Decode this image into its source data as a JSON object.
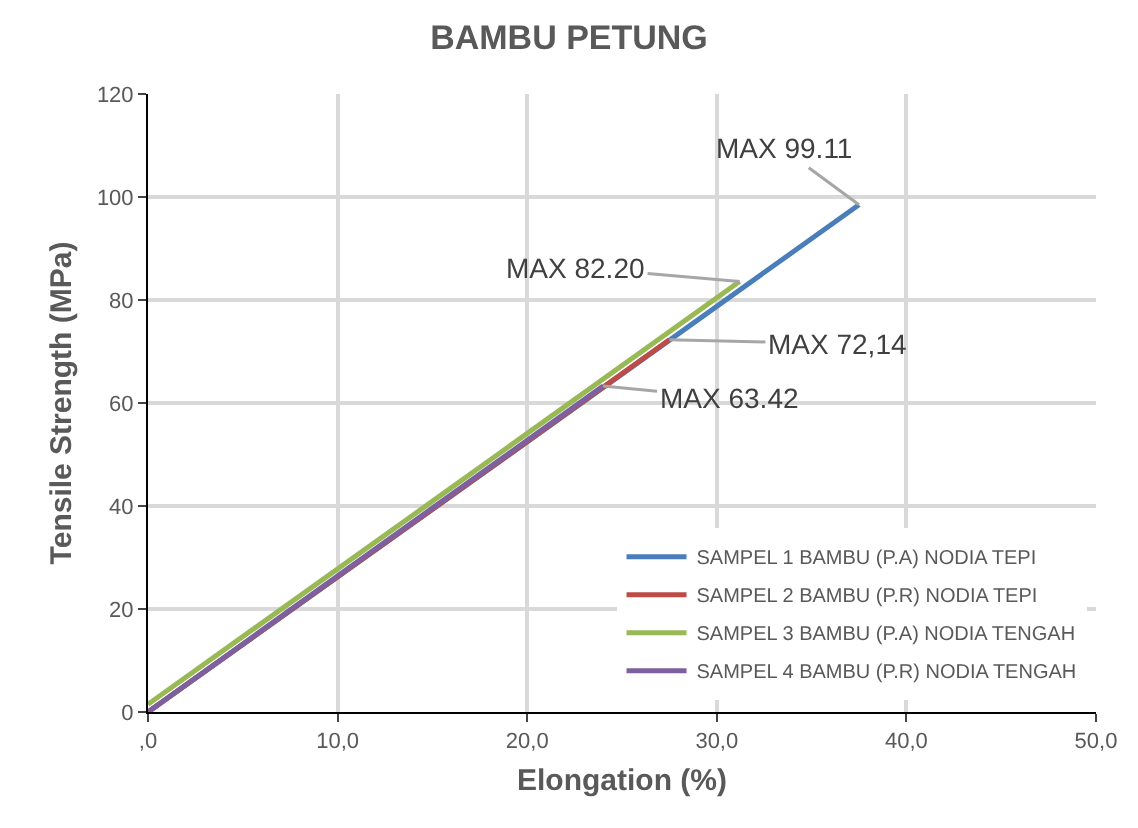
{
  "chart_data": {
    "type": "line",
    "title": "BAMBU PETUNG",
    "xlabel": "Elongation (%)",
    "ylabel": "Tensile Strength (MPa)",
    "xlim": [
      0,
      50
    ],
    "xticks": [
      {
        "value": 0,
        "label": ",0"
      },
      {
        "value": 10,
        "label": "10,0"
      },
      {
        "value": 20,
        "label": "20,0"
      },
      {
        "value": 30,
        "label": "30,0"
      },
      {
        "value": 40,
        "label": "40,0"
      },
      {
        "value": 50,
        "label": "50,0"
      }
    ],
    "ylim": [
      0,
      120
    ],
    "yticks": [
      0,
      20,
      40,
      60,
      80,
      100,
      120
    ],
    "grid": true,
    "legend": "bottom right",
    "marker": "none",
    "line_style": "solid",
    "series": [
      {
        "name": "SAMPEL 1 BAMBU (P.A) NODIA TEPI",
        "color": "#4a7ebb",
        "x": [
          0,
          18.8,
          37.5
        ],
        "values": [
          0,
          49.3,
          98.5
        ]
      },
      {
        "name": "SAMPEL 2 BAMBU (P.R) NODIA TEPI",
        "color": "#be4b48",
        "x": [
          0,
          13.8,
          27.5
        ],
        "values": [
          0,
          36.2,
          72.3
        ]
      },
      {
        "name": "SAMPEL 3 BAMBU (P.A) NODIA TENGAH",
        "color": "#98b954",
        "x": [
          0,
          15.6,
          31.2
        ],
        "values": [
          1.5,
          42.5,
          83.6
        ]
      },
      {
        "name": "SAMPEL 4 BAMBU (P.R) NODIA TENGAH",
        "color": "#7d60a0",
        "x": [
          0,
          12,
          24
        ],
        "values": [
          0,
          31.7,
          63.3
        ]
      }
    ],
    "annotations": [
      {
        "text": "MAX 99.11",
        "x": 37.5,
        "y": 98.5
      },
      {
        "text": "MAX 82.20",
        "x": 31.2,
        "y": 83.6
      },
      {
        "text": "MAX 72,14",
        "x": 27.5,
        "y": 72.3
      },
      {
        "text": "MAX 63.42",
        "x": 24,
        "y": 63.3
      }
    ]
  }
}
